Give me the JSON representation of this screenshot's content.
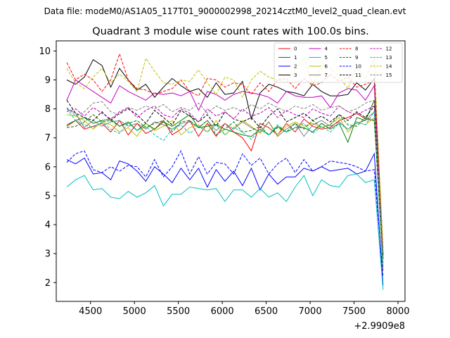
{
  "chart_data": {
    "type": "line",
    "suptitle": "Data file: modeM0/AS1A05_117T01_9000002998_20214cztM0_level2_quad_clean.evt",
    "title": "Quadrant 3 module wise count rates with 100.0s bins.",
    "xlabel": "",
    "ylabel": "",
    "x_offset_label": "+2.9909e8",
    "xlim": [
      4110,
      8080
    ],
    "ylim": [
      1.35,
      10.35
    ],
    "x_ticks": [
      4500,
      5000,
      5500,
      6000,
      6500,
      7000,
      7500,
      8000
    ],
    "y_ticks": [
      2,
      3,
      4,
      5,
      6,
      7,
      8,
      9,
      10
    ],
    "x": [
      4230,
      4330,
      4430,
      4530,
      4630,
      4730,
      4830,
      4930,
      5030,
      5130,
      5230,
      5330,
      5430,
      5530,
      5630,
      5730,
      5830,
      5930,
      6030,
      6130,
      6230,
      6330,
      6430,
      6530,
      6630,
      6730,
      6830,
      6930,
      7030,
      7130,
      7230,
      7330,
      7430,
      7530,
      7630,
      7730,
      7830
    ],
    "series": [
      {
        "name": "0",
        "color": "#ff0000",
        "style": "solid",
        "values": [
          7.4,
          7.6,
          7.3,
          7.4,
          7.5,
          7.2,
          7.6,
          7.1,
          7.5,
          7.15,
          7.3,
          7.6,
          7.1,
          7.3,
          7.6,
          7.05,
          7.5,
          7.05,
          7.5,
          7.2,
          7.0,
          6.55,
          7.5,
          7.35,
          7.1,
          7.5,
          7.2,
          7.65,
          7.4,
          7.3,
          7.35,
          7.6,
          7.7,
          7.85,
          7.65,
          7.6,
          2.8
        ]
      },
      {
        "name": "1",
        "color": "#008000",
        "style": "solid",
        "values": [
          7.45,
          7.6,
          7.7,
          7.5,
          7.6,
          7.65,
          7.4,
          7.55,
          7.25,
          7.5,
          7.3,
          7.55,
          7.4,
          7.6,
          7.8,
          7.35,
          7.4,
          7.45,
          7.3,
          7.2,
          7.1,
          7.05,
          7.3,
          7.1,
          7.4,
          7.2,
          7.35,
          7.35,
          7.2,
          7.5,
          7.3,
          7.5,
          6.85,
          7.7,
          7.6,
          8.3,
          3.0
        ]
      },
      {
        "name": "2",
        "color": "#0000ff",
        "style": "solid",
        "values": [
          6.25,
          6.1,
          6.3,
          5.75,
          5.8,
          5.55,
          6.2,
          6.1,
          5.85,
          5.5,
          6.0,
          5.75,
          5.45,
          5.95,
          5.55,
          5.95,
          5.3,
          5.9,
          5.5,
          5.85,
          5.35,
          5.95,
          5.2,
          5.75,
          5.4,
          5.65,
          5.65,
          5.95,
          5.85,
          6.0,
          5.85,
          5.9,
          5.95,
          5.75,
          5.85,
          6.45,
          1.9
        ]
      },
      {
        "name": "3",
        "color": "#000000",
        "style": "solid",
        "values": [
          9.0,
          8.85,
          9.1,
          9.7,
          9.5,
          8.75,
          9.4,
          9.0,
          8.65,
          8.85,
          8.4,
          8.75,
          9.05,
          8.8,
          8.6,
          8.7,
          8.4,
          8.9,
          8.5,
          8.55,
          8.95,
          7.65,
          8.55,
          8.85,
          8.75,
          8.6,
          8.55,
          8.45,
          8.85,
          8.6,
          8.45,
          8.45,
          8.5,
          8.9,
          8.65,
          9.05,
          3.0
        ]
      },
      {
        "name": "4",
        "color": "#bf00bf",
        "style": "solid",
        "values": [
          8.3,
          9.0,
          8.8,
          8.6,
          8.4,
          8.2,
          8.8,
          8.6,
          8.45,
          8.3,
          8.55,
          8.5,
          8.55,
          8.45,
          8.6,
          7.95,
          8.6,
          8.5,
          8.3,
          8.5,
          8.6,
          8.55,
          8.5,
          8.4,
          8.2,
          8.6,
          8.45,
          8.4,
          8.4,
          8.45,
          8.05,
          8.55,
          8.7,
          8.65,
          8.3,
          8.8,
          2.9
        ]
      },
      {
        "name": "5",
        "color": "#00bfbf",
        "style": "solid",
        "values": [
          5.3,
          5.55,
          5.7,
          5.2,
          5.25,
          4.95,
          4.9,
          5.15,
          4.95,
          5.1,
          5.35,
          4.65,
          5.05,
          5.05,
          5.3,
          5.25,
          5.2,
          5.25,
          4.8,
          5.2,
          5.2,
          4.95,
          5.25,
          4.95,
          5.1,
          4.8,
          5.3,
          5.7,
          5.0,
          5.55,
          5.35,
          5.3,
          5.7,
          5.75,
          5.45,
          5.55,
          1.75
        ]
      },
      {
        "name": "6",
        "color": "#bfbf00",
        "style": "solid",
        "values": [
          7.8,
          7.75,
          7.6,
          7.3,
          7.55,
          7.45,
          7.2,
          7.35,
          7.05,
          7.5,
          7.25,
          7.4,
          7.6,
          7.1,
          7.35,
          7.45,
          7.2,
          7.6,
          7.1,
          7.35,
          7.6,
          7.4,
          7.15,
          7.55,
          7.1,
          7.4,
          7.55,
          7.4,
          7.5,
          7.35,
          7.45,
          7.7,
          7.2,
          7.55,
          7.45,
          7.7,
          2.4
        ]
      },
      {
        "name": "7",
        "color": "#808080",
        "style": "solid",
        "values": [
          8.0,
          7.85,
          7.35,
          7.6,
          7.4,
          7.55,
          7.6,
          7.4,
          7.5,
          7.3,
          7.55,
          7.45,
          7.3,
          7.5,
          7.55,
          7.35,
          7.6,
          7.25,
          7.5,
          7.3,
          7.55,
          7.35,
          7.2,
          7.55,
          7.05,
          7.3,
          7.5,
          7.05,
          7.45,
          7.6,
          7.4,
          7.55,
          7.3,
          7.5,
          7.6,
          7.9,
          2.5
        ]
      },
      {
        "name": "8",
        "color": "#ff0000",
        "style": "dashed",
        "values": [
          9.6,
          9.0,
          9.2,
          9.0,
          8.6,
          9.0,
          9.9,
          9.0,
          8.7,
          8.65,
          8.5,
          8.6,
          8.7,
          9.0,
          8.6,
          8.45,
          9.05,
          9.0,
          8.75,
          8.9,
          8.85,
          8.5,
          8.9,
          8.6,
          9.0,
          9.05,
          8.7,
          9.05,
          8.8,
          8.9,
          9.2,
          8.95,
          9.1,
          8.75,
          8.85,
          9.0,
          3.2
        ]
      },
      {
        "name": "9",
        "color": "#008000",
        "style": "dashed",
        "values": [
          7.35,
          7.4,
          7.55,
          7.8,
          7.55,
          7.6,
          7.4,
          7.5,
          7.6,
          7.35,
          7.5,
          7.6,
          7.2,
          7.55,
          7.6,
          7.35,
          7.6,
          7.1,
          7.3,
          7.55,
          7.2,
          7.25,
          7.4,
          7.1,
          7.35,
          7.2,
          7.5,
          7.3,
          7.6,
          7.35,
          7.45,
          7.8,
          7.45,
          7.4,
          7.7,
          7.6,
          2.7
        ]
      },
      {
        "name": "10",
        "color": "#0000ff",
        "style": "dashed",
        "values": [
          6.15,
          6.45,
          6.55,
          5.9,
          5.8,
          6.0,
          5.85,
          6.05,
          6.0,
          5.65,
          6.25,
          5.65,
          6.0,
          6.55,
          5.75,
          6.35,
          5.75,
          6.15,
          6.1,
          5.75,
          6.45,
          6.05,
          6.3,
          5.75,
          6.1,
          6.3,
          5.8,
          6.25,
          5.85,
          6.0,
          6.2,
          6.15,
          6.1,
          6.0,
          5.85,
          5.9,
          2.2
        ]
      },
      {
        "name": "11",
        "color": "#000000",
        "style": "dashed",
        "values": [
          8.3,
          7.85,
          7.7,
          7.6,
          7.9,
          7.6,
          7.85,
          8.0,
          7.8,
          7.5,
          7.95,
          7.7,
          7.45,
          7.95,
          7.75,
          7.55,
          7.8,
          7.4,
          7.9,
          7.65,
          7.55,
          7.7,
          7.35,
          7.75,
          8.0,
          7.55,
          7.7,
          7.85,
          7.6,
          7.75,
          7.55,
          7.8,
          7.6,
          7.9,
          7.7,
          8.1,
          2.9
        ]
      },
      {
        "name": "12",
        "color": "#bf00bf",
        "style": "dashed",
        "values": [
          7.9,
          8.0,
          7.75,
          8.05,
          7.85,
          7.65,
          7.9,
          8.05,
          7.7,
          7.95,
          8.1,
          7.8,
          7.7,
          8.0,
          7.85,
          7.55,
          8.0,
          7.75,
          7.9,
          7.65,
          8.0,
          7.75,
          7.85,
          8.05,
          7.7,
          7.95,
          7.8,
          7.7,
          8.0,
          7.85,
          7.75,
          8.1,
          7.9,
          7.8,
          7.95,
          8.1,
          2.85
        ]
      },
      {
        "name": "13",
        "color": "#00bfbf",
        "style": "dashed",
        "values": [
          8.0,
          7.6,
          7.45,
          7.35,
          7.55,
          7.3,
          7.15,
          7.5,
          7.25,
          7.4,
          7.1,
          6.9,
          7.3,
          7.45,
          7.15,
          7.4,
          7.2,
          7.45,
          7.1,
          7.35,
          7.2,
          6.95,
          7.3,
          7.1,
          7.45,
          7.2,
          7.35,
          7.5,
          7.15,
          7.4,
          7.2,
          7.5,
          7.3,
          7.55,
          7.45,
          7.9,
          2.6
        ]
      },
      {
        "name": "14",
        "color": "#bfbf00",
        "style": "dashed",
        "values": [
          9.4,
          8.9,
          8.7,
          9.1,
          9.4,
          8.9,
          9.2,
          8.95,
          8.6,
          9.75,
          9.3,
          8.9,
          8.85,
          9.0,
          8.95,
          9.35,
          8.9,
          8.5,
          9.1,
          9.0,
          8.4,
          9.0,
          9.3,
          9.1,
          9.0,
          8.9,
          9.35,
          9.75,
          8.8,
          9.5,
          9.4,
          9.1,
          8.7,
          9.45,
          9.05,
          9.75,
          3.1
        ]
      },
      {
        "name": "15",
        "color": "#808080",
        "style": "dashed",
        "values": [
          8.05,
          7.75,
          7.9,
          8.2,
          8.25,
          7.9,
          7.8,
          8.05,
          7.95,
          8.1,
          8.0,
          8.15,
          7.9,
          8.05,
          7.95,
          8.2,
          7.85,
          8.1,
          7.95,
          8.05,
          7.9,
          8.15,
          8.0,
          8.2,
          8.05,
          7.9,
          8.1,
          8.0,
          8.15,
          7.95,
          8.05,
          8.1,
          7.9,
          8.0,
          8.2,
          8.3,
          2.95
        ]
      }
    ],
    "legend": {
      "placement": "top-right",
      "columns": 4
    }
  }
}
